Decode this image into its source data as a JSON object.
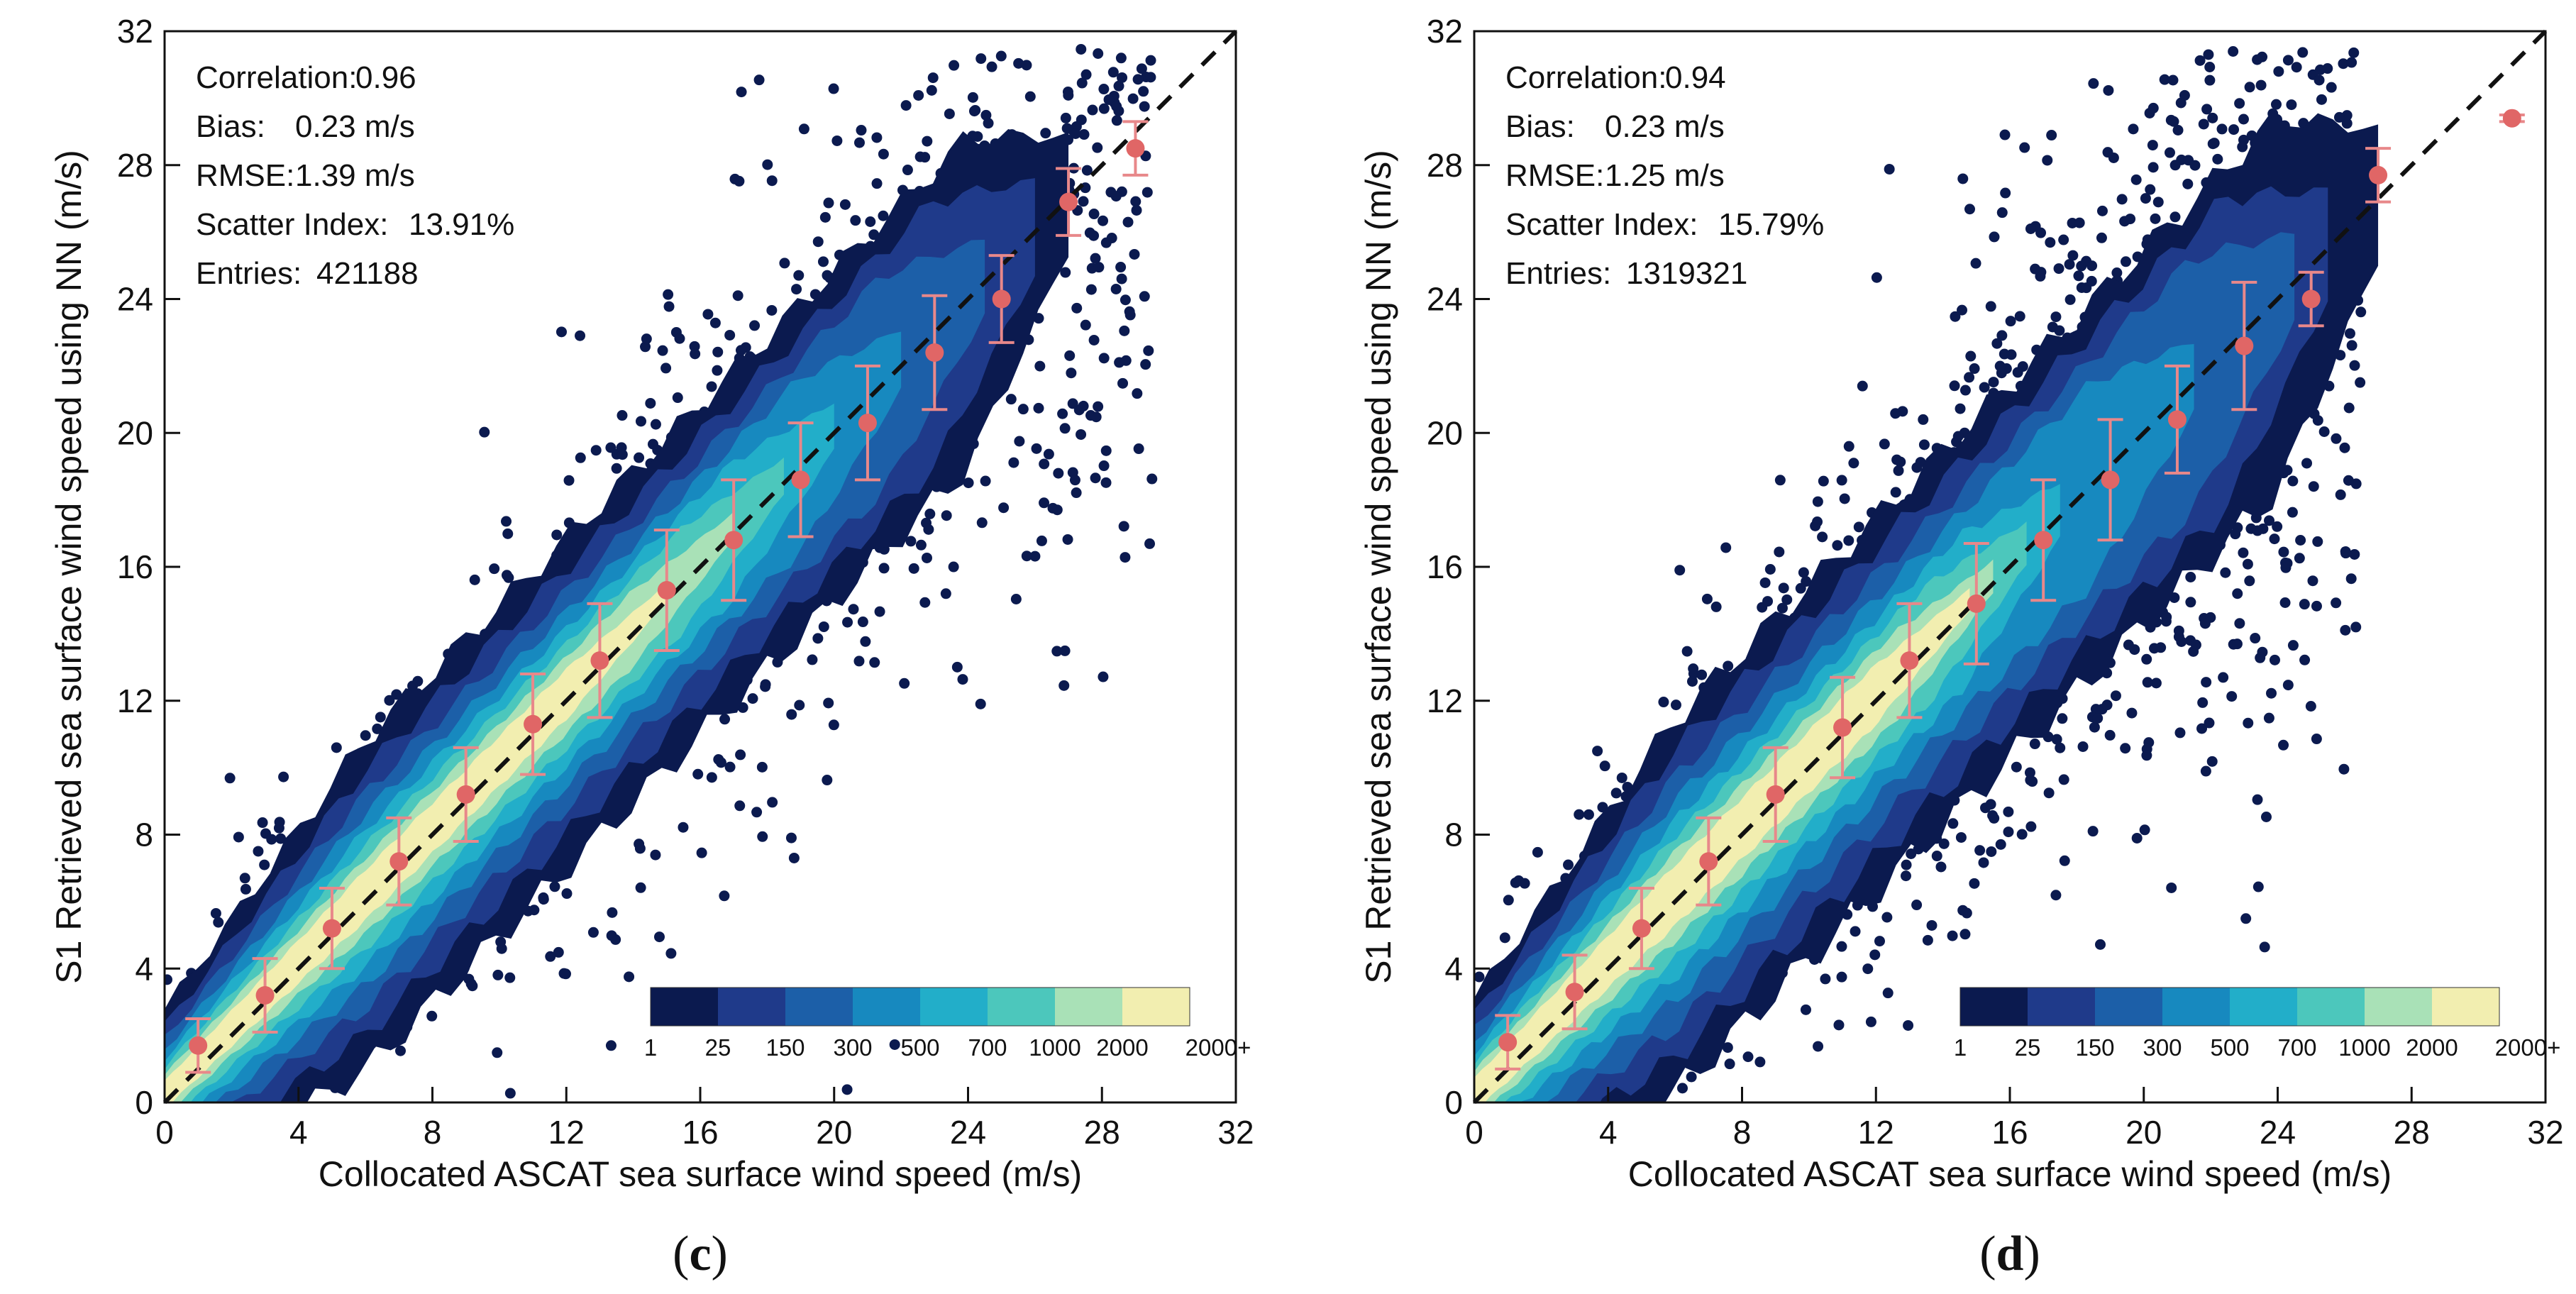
{
  "colors": {
    "density": [
      "#0b1a4f",
      "#1f3a8a",
      "#1c5fa8",
      "#1789bf",
      "#22aec9",
      "#4cc7bc",
      "#a9e1b7",
      "#f2eeb0"
    ],
    "marker": "#e06666",
    "errorbar": "#e8888a",
    "diagonal": "#111111"
  },
  "chart_data": [
    {
      "type": "scatter",
      "panel_label": "c",
      "xlabel": "Collocated ASCAT sea surface wind speed (m/s)",
      "ylabel": "S1 Retrieved sea surface wind speed using NN (m/s)",
      "xlim": [
        0,
        32
      ],
      "ylim": [
        0,
        32
      ],
      "xticks": [
        0,
        4,
        8,
        12,
        16,
        20,
        24,
        28,
        32
      ],
      "yticks": [
        0,
        4,
        8,
        12,
        16,
        20,
        24,
        28,
        32
      ],
      "reference_line": "y = x",
      "stats": [
        {
          "label": "Correlation:",
          "value": "0.96"
        },
        {
          "label": "Bias:",
          "value": "0.23 m/s"
        },
        {
          "label": "RMSE:",
          "value": "1.39 m/s"
        },
        {
          "label": "Scatter Index:",
          "value": "13.91%"
        },
        {
          "label": "Entries:",
          "value": "421188"
        }
      ],
      "colorbar": {
        "labels": [
          "1",
          "25",
          "150",
          "300",
          "500",
          "700",
          "1000",
          "2000",
          "2000+"
        ]
      },
      "binned_means": [
        {
          "x": 1,
          "y": 1.7,
          "err": 0.8
        },
        {
          "x": 3,
          "y": 3.2,
          "err": 1.1
        },
        {
          "x": 5,
          "y": 5.2,
          "err": 1.2
        },
        {
          "x": 7,
          "y": 7.2,
          "err": 1.3
        },
        {
          "x": 9,
          "y": 9.2,
          "err": 1.4
        },
        {
          "x": 11,
          "y": 11.3,
          "err": 1.5
        },
        {
          "x": 13,
          "y": 13.2,
          "err": 1.7
        },
        {
          "x": 15,
          "y": 15.3,
          "err": 1.8
        },
        {
          "x": 17,
          "y": 16.8,
          "err": 1.8
        },
        {
          "x": 19,
          "y": 18.6,
          "err": 1.7
        },
        {
          "x": 21,
          "y": 20.3,
          "err": 1.7
        },
        {
          "x": 23,
          "y": 22.4,
          "err": 1.7
        },
        {
          "x": 25,
          "y": 24.0,
          "err": 1.3
        },
        {
          "x": 27,
          "y": 26.9,
          "err": 1.0
        },
        {
          "x": 29,
          "y": 28.5,
          "err": 0.8
        }
      ]
    },
    {
      "type": "scatter",
      "panel_label": "d",
      "xlabel": "Collocated ASCAT sea surface wind speed (m/s)",
      "ylabel": "S1 Retrieved sea surface wind speed using NN (m/s)",
      "xlim": [
        0,
        32
      ],
      "ylim": [
        0,
        32
      ],
      "xticks": [
        0,
        4,
        8,
        12,
        16,
        20,
        24,
        28,
        32
      ],
      "yticks": [
        0,
        4,
        8,
        12,
        16,
        20,
        24,
        28,
        32
      ],
      "reference_line": "y = x",
      "stats": [
        {
          "label": "Correlation:",
          "value": "0.94"
        },
        {
          "label": "Bias:",
          "value": "0.23 m/s"
        },
        {
          "label": "RMSE:",
          "value": "1.25 m/s"
        },
        {
          "label": "Scatter Index:",
          "value": "15.79%"
        },
        {
          "label": "Entries:",
          "value": "1319321"
        }
      ],
      "colorbar": {
        "labels": [
          "1",
          "25",
          "150",
          "300",
          "500",
          "700",
          "1000",
          "2000",
          "2000+"
        ]
      },
      "binned_means": [
        {
          "x": 1,
          "y": 1.8,
          "err": 0.8
        },
        {
          "x": 3,
          "y": 3.3,
          "err": 1.1
        },
        {
          "x": 5,
          "y": 5.2,
          "err": 1.2
        },
        {
          "x": 7,
          "y": 7.2,
          "err": 1.3
        },
        {
          "x": 9,
          "y": 9.2,
          "err": 1.4
        },
        {
          "x": 11,
          "y": 11.2,
          "err": 1.5
        },
        {
          "x": 13,
          "y": 13.2,
          "err": 1.7
        },
        {
          "x": 15,
          "y": 14.9,
          "err": 1.8
        },
        {
          "x": 17,
          "y": 16.8,
          "err": 1.8
        },
        {
          "x": 19,
          "y": 18.6,
          "err": 1.8
        },
        {
          "x": 21,
          "y": 20.4,
          "err": 1.6
        },
        {
          "x": 23,
          "y": 22.6,
          "err": 1.9
        },
        {
          "x": 25,
          "y": 24.0,
          "err": 0.8
        },
        {
          "x": 27,
          "y": 27.7,
          "err": 0.8
        },
        {
          "x": 31,
          "y": 29.4,
          "err": 0.1
        }
      ]
    }
  ]
}
